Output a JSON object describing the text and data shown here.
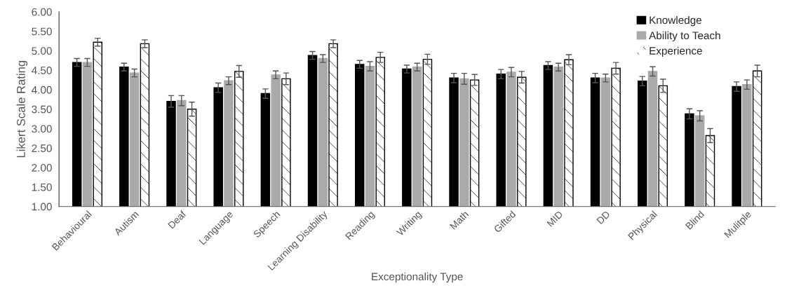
{
  "chart_data": {
    "type": "bar",
    "xlabel": "Exceptionality Type",
    "ylabel": "Likert Scale Rating",
    "categories": [
      "Behavioural",
      "Autism",
      "Deaf",
      "Language",
      "Speech",
      "Learning Disability",
      "Reading",
      "Writing",
      "Math",
      "Gifted",
      "MID",
      "DD",
      "Physical",
      "Blind",
      "Mulitple"
    ],
    "series": [
      {
        "name": "Knowledge",
        "color": "#000000",
        "values": [
          4.7,
          4.58,
          3.7,
          4.05,
          3.9,
          4.88,
          4.65,
          4.53,
          4.3,
          4.4,
          4.62,
          4.3,
          4.22,
          3.38,
          4.08
        ],
        "errors": [
          0.1,
          0.1,
          0.15,
          0.12,
          0.12,
          0.1,
          0.1,
          0.1,
          0.12,
          0.12,
          0.1,
          0.12,
          0.12,
          0.13,
          0.12
        ]
      },
      {
        "name": "Ability to Teach",
        "color": "#aaaaaa",
        "values": [
          4.7,
          4.43,
          3.72,
          4.23,
          4.38,
          4.8,
          4.6,
          4.58,
          4.28,
          4.45,
          4.58,
          4.3,
          4.47,
          3.33,
          4.13
        ],
        "errors": [
          0.1,
          0.1,
          0.13,
          0.1,
          0.1,
          0.1,
          0.12,
          0.1,
          0.14,
          0.12,
          0.1,
          0.1,
          0.12,
          0.13,
          0.12
        ]
      },
      {
        "name": "Experience",
        "color": "#ffffff",
        "values": [
          5.22,
          5.18,
          3.5,
          4.47,
          4.28,
          5.18,
          4.83,
          4.78,
          4.25,
          4.32,
          4.77,
          4.55,
          4.1,
          2.82,
          4.48
        ],
        "errors": [
          0.1,
          0.1,
          0.18,
          0.15,
          0.15,
          0.1,
          0.13,
          0.13,
          0.14,
          0.15,
          0.13,
          0.15,
          0.17,
          0.18,
          0.15
        ]
      }
    ],
    "ylim": [
      1,
      6
    ],
    "yticks": [
      {
        "value": 1,
        "label": "1.00"
      },
      {
        "value": 1.5,
        "label": "1.50"
      },
      {
        "value": 2,
        "label": "2.00"
      },
      {
        "value": 2.5,
        "label": "2.50"
      },
      {
        "value": 3,
        "label": "3.00"
      },
      {
        "value": 3.5,
        "label": "3.50"
      },
      {
        "value": 4,
        "label": "4.00"
      },
      {
        "value": 4.5,
        "label": "4.50"
      },
      {
        "value": 5,
        "label": "5.00"
      },
      {
        "value": 5.5,
        "label": "5.50"
      },
      {
        "value": 6,
        "label": "6.00"
      }
    ],
    "grid": false,
    "legend": "top right"
  }
}
